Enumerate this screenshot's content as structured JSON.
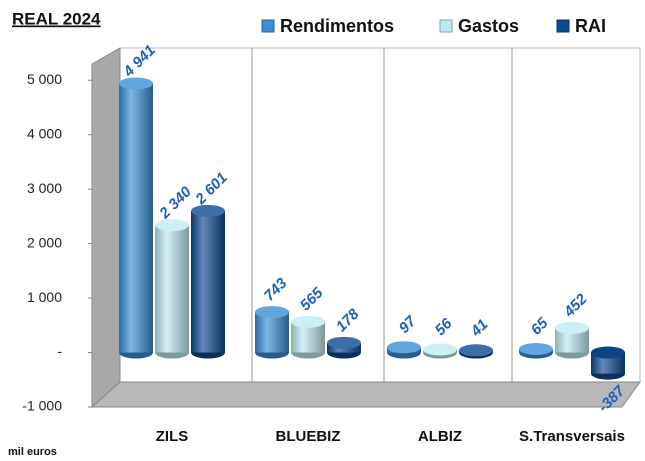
{
  "chart_data": {
    "type": "bar3d",
    "title": "REAL 2024",
    "y_axis_label": "mil euros",
    "categories": [
      "ZILS",
      "BLUEBIZ",
      "ALBIZ",
      "S.Transversais"
    ],
    "series": [
      {
        "name": "Rendimentos",
        "color": "#3a8fd6",
        "values": [
          4941,
          743,
          97,
          65
        ],
        "value_labels": [
          "4 941",
          "743",
          "97",
          "65"
        ]
      },
      {
        "name": "Gastos",
        "color": "#bfeaf3",
        "values": [
          2340,
          565,
          56,
          452
        ],
        "value_labels": [
          "2 340",
          "565",
          "56",
          "452"
        ]
      },
      {
        "name": "RAI",
        "color": "#0d4a91",
        "values": [
          2601,
          178,
          41,
          -387
        ],
        "value_labels": [
          "2 601",
          "178",
          "41",
          "-387"
        ]
      }
    ],
    "ylim": [
      -1000,
      5500
    ],
    "yticks": [
      {
        "value": -1000,
        "label": "-1 000"
      },
      {
        "value": 0,
        "label": "-"
      },
      {
        "value": 1000,
        "label": "1 000"
      },
      {
        "value": 2000,
        "label": "2 000"
      },
      {
        "value": 3000,
        "label": "3 000"
      },
      {
        "value": 4000,
        "label": "4 000"
      },
      {
        "value": 5000,
        "label": "5 000"
      }
    ],
    "legend": "top"
  }
}
